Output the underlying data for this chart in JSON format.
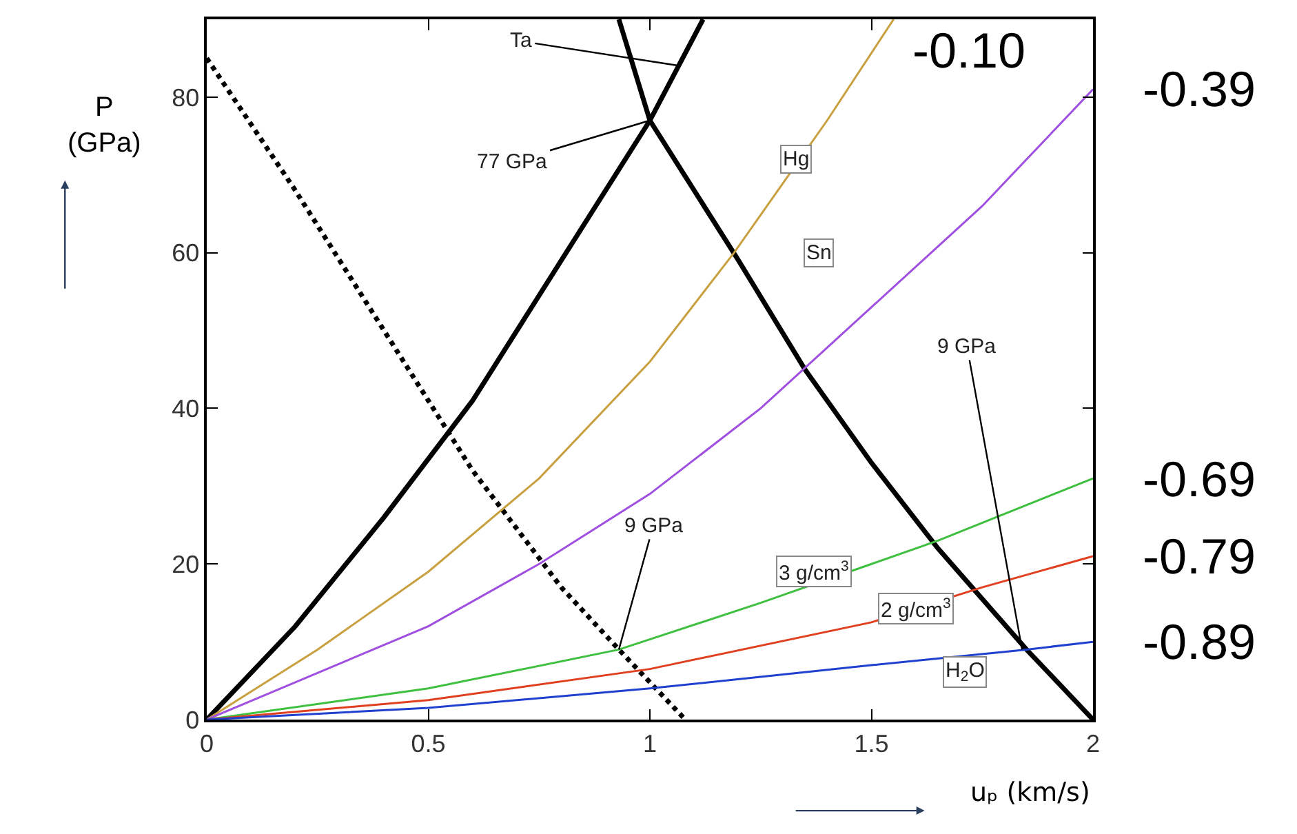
{
  "chart_data": {
    "type": "line",
    "xlabel": "uₚ (km/s)",
    "ylabel": "P\n(GPa)",
    "xlim": [
      0,
      2
    ],
    "ylim": [
      0,
      90
    ],
    "xticks": [
      0,
      0.5,
      1,
      1.5,
      2
    ],
    "yticks": [
      0,
      20,
      40,
      60,
      80
    ],
    "series": [
      {
        "color": "#000000",
        "line_style": "solid",
        "x": [
          0,
          0.2,
          0.4,
          0.6,
          0.8,
          1.0,
          1.12
        ],
        "values": [
          0,
          12,
          26,
          41,
          59,
          77,
          90
        ]
      },
      {
        "color": "#000000",
        "line_style": "solid",
        "x": [
          0.93,
          1.0,
          1.2,
          1.35,
          1.5,
          1.65,
          1.85,
          2.0
        ],
        "values": [
          90,
          77,
          59,
          45,
          33,
          22,
          9,
          0
        ]
      },
      {
        "color": "#000000",
        "line_style": "dotted",
        "x": [
          0,
          0.2,
          0.4,
          0.6,
          0.8,
          0.93,
          1.08
        ],
        "values": [
          85,
          68,
          50,
          32,
          17,
          9,
          0
        ]
      },
      {
        "color": "#c8a040",
        "line_style": "solid",
        "x": [
          0,
          0.25,
          0.5,
          0.75,
          1.0,
          1.19,
          1.4,
          1.55
        ],
        "values": [
          0,
          9,
          19,
          31,
          46,
          60,
          77,
          90
        ]
      },
      {
        "color": "#a050e0",
        "line_style": "solid",
        "x": [
          0,
          0.5,
          0.75,
          1.0,
          1.25,
          1.5,
          1.75,
          2.0
        ],
        "values": [
          0,
          12,
          20,
          29,
          40,
          53,
          66,
          81
        ]
      },
      {
        "color": "#40c040",
        "line_style": "solid",
        "x": [
          0,
          0.5,
          0.93,
          1.25,
          1.5,
          1.65,
          2.0
        ],
        "values": [
          0,
          4,
          9,
          15,
          20,
          23,
          31
        ]
      },
      {
        "color": "#e04020",
        "line_style": "solid",
        "x": [
          0,
          0.5,
          1.0,
          1.5,
          1.75,
          2.0
        ],
        "values": [
          0,
          2.5,
          6.5,
          12.5,
          17,
          21
        ]
      },
      {
        "color": "#2040d0",
        "line_style": "solid",
        "x": [
          0,
          0.5,
          1.0,
          1.5,
          1.85,
          2.0
        ],
        "values": [
          0,
          1.5,
          4,
          7,
          9,
          10
        ]
      }
    ],
    "annotations": [
      {
        "text": "Ta",
        "x": 1.07,
        "y": 84
      },
      {
        "text": "77 GPa",
        "x": 1.0,
        "y": 77
      },
      {
        "text": "Hg",
        "x": 1.33,
        "y": 72
      },
      "Sn",
      {
        "text": "9 GPa",
        "x": 0.93,
        "y": 9
      },
      {
        "text": "9 GPa",
        "x": 1.84,
        "y": 9
      },
      {
        "text": "3 g/cm$^{3}$",
        "x": 1.37,
        "y": 17.3
      },
      {
        "text": "2 g/cm$^{3}$",
        "x": 1.6,
        "y": 14.3
      },
      {
        "text": "H$_{2}$O",
        "x": 1.71,
        "y": 8.3
      },
      "-0.10",
      "-0.39",
      "-0.69",
      "-0.79",
      "-0.89"
    ]
  }
}
